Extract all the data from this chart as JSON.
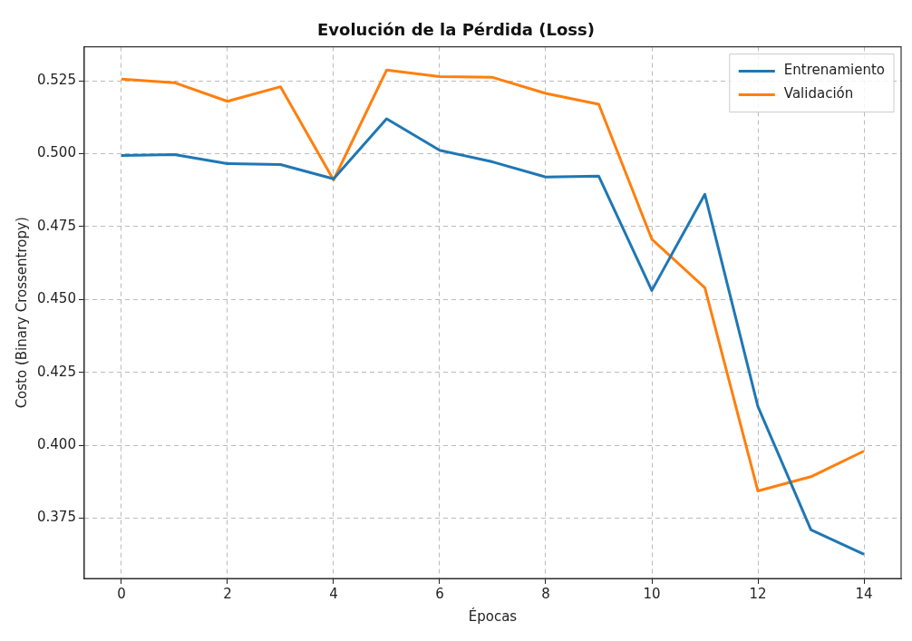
{
  "chart_data": {
    "type": "line",
    "title": "Evolución de la Pérdida (Loss)",
    "xlabel": "Épocas",
    "ylabel": "Costo (Binary Crossentropy)",
    "x": [
      0,
      1,
      2,
      3,
      4,
      5,
      6,
      7,
      8,
      9,
      10,
      11,
      12,
      13,
      14
    ],
    "series": [
      {
        "name": "Entrenamiento",
        "color": "#1f77b4",
        "values": [
          0.4994,
          0.4997,
          0.4966,
          0.4963,
          0.4914,
          0.512,
          0.5012,
          0.4972,
          0.492,
          0.4923,
          0.4531,
          0.4861,
          0.4133,
          0.371,
          0.3626
        ]
      },
      {
        "name": "Validación",
        "color": "#ff7f0e",
        "values": [
          0.5256,
          0.5244,
          0.518,
          0.523,
          0.491,
          0.5287,
          0.5265,
          0.5262,
          0.5207,
          0.517,
          0.4707,
          0.454,
          0.3843,
          0.3892,
          0.398
        ]
      }
    ],
    "xlim": [
      -0.7,
      14.7
    ],
    "xticks": [
      0,
      2,
      4,
      6,
      8,
      10,
      12,
      14
    ],
    "ylim": [
      0.3543,
      0.5367
    ],
    "yticks": [
      0.375,
      {
        "value": 0.4,
        "label": "0.400"
      },
      0.425,
      {
        "value": 0.45,
        "label": "0.450"
      },
      0.475,
      {
        "value": 0.5,
        "label": "0.500"
      },
      0.525
    ],
    "grid": true,
    "legend": "top right",
    "marker": "none",
    "line_style": "solid"
  }
}
